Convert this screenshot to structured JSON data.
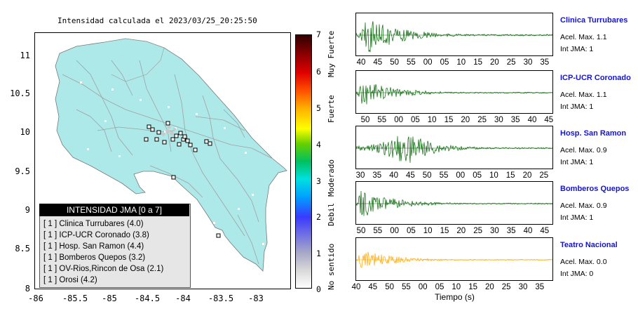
{
  "map": {
    "title": "Intensidad calculada el 2023/03/25_20:25:50",
    "y_ticks": [
      "11",
      "10.5",
      "10",
      "9.5",
      "9",
      "8.5",
      "8"
    ],
    "x_ticks": [
      "-86",
      "-85.5",
      "-85",
      "-84.5",
      "-84",
      "-83.5",
      "-83"
    ],
    "colors": {
      "land": "#aee9ea",
      "roads": "#a0a0a0",
      "border": "#555555"
    }
  },
  "legend": {
    "header": "INTENSIDAD JMA [0 a 7]",
    "items": [
      "[ 1 ]  Clinica Turrubares (4.0)",
      "[ 1 ]  ICP-UCR Coronado (3.8)",
      "[ 1 ]  Hosp. San Ramon (4.4)",
      "[ 1 ]  Bomberos Quepos (3.2)",
      "[ 1 ]  OV-Rios,Rincon de Osa (2.1)",
      "[ 1 ]  Orosi (4.2)"
    ]
  },
  "colorbar": {
    "numbers": [
      "7",
      "6",
      "5",
      "4",
      "3",
      "2",
      "1",
      "0"
    ],
    "labels": [
      "Muy Fuerte",
      "Fuerte",
      "Moderado",
      "Debil",
      "No sentido"
    ]
  },
  "stations": [
    {
      "name": "Clinica Turrubares",
      "accel": "Acel. Max. 1.1",
      "jma": "Int JMA: 1",
      "ticks": [
        "40",
        "45",
        "50",
        "55",
        "00",
        "05",
        "10",
        "15",
        "20",
        "25",
        "30",
        "35"
      ],
      "color": "#006400"
    },
    {
      "name": "ICP-UCR Coronado",
      "accel": "Acel. Max. 1.1",
      "jma": "Int JMA: 1",
      "ticks": [
        "50",
        "55",
        "00",
        "05",
        "10",
        "15",
        "20",
        "25",
        "30",
        "35",
        "40",
        "45"
      ],
      "color": "#006400"
    },
    {
      "name": "Hosp. San Ramon",
      "accel": "Acel. Max. 0.9",
      "jma": "Int JMA: 1",
      "ticks": [
        "30",
        "35",
        "40",
        "45",
        "50",
        "55",
        "00",
        "05",
        "10",
        "15",
        "20",
        "25"
      ],
      "color": "#006400"
    },
    {
      "name": "Bomberos Quepos",
      "accel": "Acel. Max. 0.9",
      "jma": "Int JMA: 1",
      "ticks": [
        "50",
        "55",
        "00",
        "05",
        "10",
        "15",
        "20",
        "25",
        "30",
        "35",
        "40",
        "45"
      ],
      "color": "#006400"
    },
    {
      "name": "Teatro Nacional",
      "accel": "Acel. Max. 0.0",
      "jma": "Int JMA: 0",
      "ticks": [
        "40",
        "45",
        "50",
        "55",
        "00",
        "05",
        "10",
        "15",
        "20",
        "25",
        "30",
        "35"
      ],
      "color": "#ffa500"
    }
  ],
  "x_axis_label": "Tiempo (s)"
}
